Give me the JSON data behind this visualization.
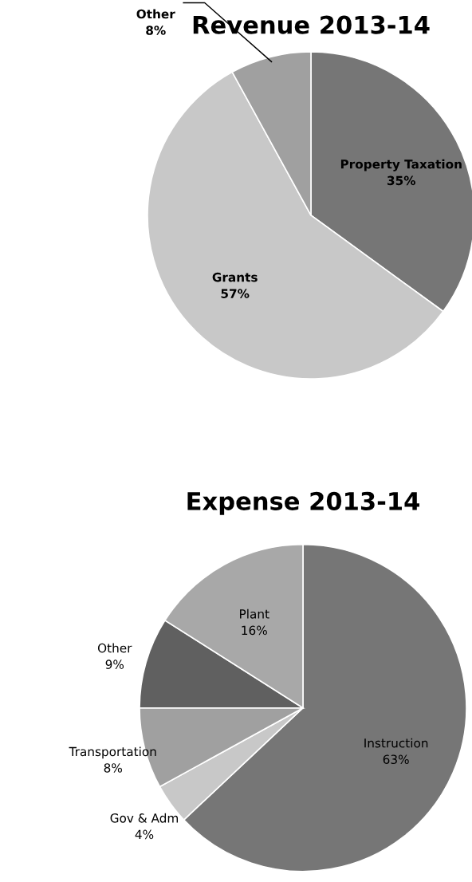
{
  "chart_data": [
    {
      "type": "pie",
      "title": "Revenue 2013-14",
      "categories": [
        "Property Taxation",
        "Grants",
        "Other"
      ],
      "values": [
        35,
        57,
        8
      ],
      "value_labels": [
        "35%",
        "57%",
        "8%"
      ],
      "colors": [
        "#767676",
        "#c8c8c8",
        "#a0a0a0"
      ]
    },
    {
      "type": "pie",
      "title": "Expense 2013-14",
      "categories": [
        "Instruction",
        "Gov & Adm",
        "Transportation",
        "Other",
        "Plant"
      ],
      "values": [
        63,
        4,
        8,
        9,
        16
      ],
      "value_labels": [
        "63%",
        "4%",
        "8%",
        "9%",
        "16%"
      ],
      "colors": [
        "#767676",
        "#c8c8c8",
        "#a0a0a0",
        "#606060",
        "#a8a8a8"
      ]
    }
  ]
}
